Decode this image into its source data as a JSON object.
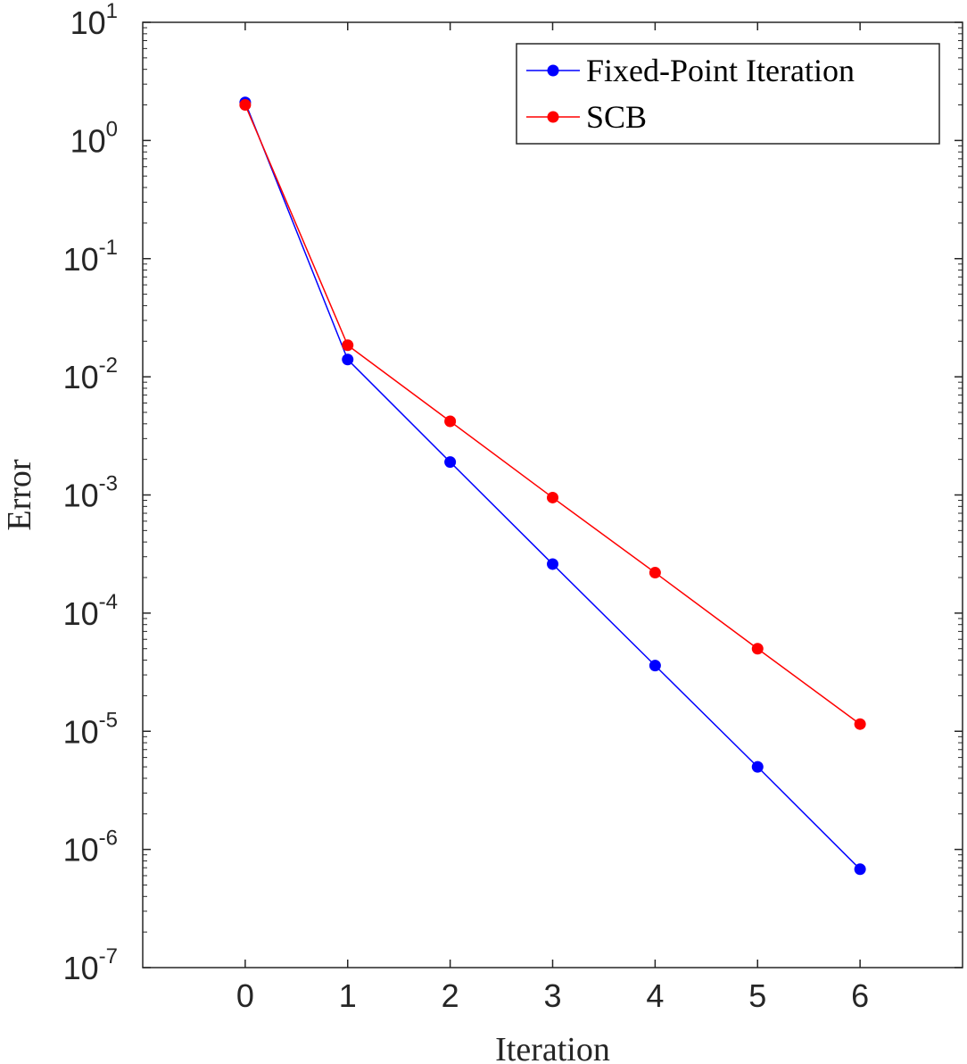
{
  "chart_data": {
    "type": "line",
    "title": "",
    "xlabel": "Iteration",
    "ylabel": "Error",
    "yscale": "log",
    "xlim": [
      -1,
      7
    ],
    "ylim": [
      1e-07,
      10
    ],
    "xticks": [
      0,
      1,
      2,
      3,
      4,
      5,
      6
    ],
    "xtick_labels": [
      "0",
      "1",
      "2",
      "3",
      "4",
      "5",
      "6"
    ],
    "yticks": [
      1,
      0,
      -1,
      -2,
      -3,
      -4,
      -5,
      -6,
      -7
    ],
    "ytick_base": "10",
    "ytick_exponents": [
      "1",
      "0",
      "-1",
      "-2",
      "-3",
      "-4",
      "-5",
      "-6",
      "-7"
    ],
    "grid": false,
    "legend_position": "top-right",
    "x": [
      0,
      1,
      2,
      3,
      4,
      5,
      6
    ],
    "series": [
      {
        "name": "Fixed-Point Iteration",
        "color": "#0000ff",
        "marker": "circle",
        "values": [
          2.1,
          0.014,
          0.0019,
          0.00026,
          3.6e-05,
          5e-06,
          6.8e-07
        ]
      },
      {
        "name": "SCB",
        "color": "#ff0000",
        "marker": "circle",
        "values": [
          2.0,
          0.0185,
          0.0042,
          0.00095,
          0.00022,
          5e-05,
          1.15e-05
        ]
      }
    ]
  }
}
